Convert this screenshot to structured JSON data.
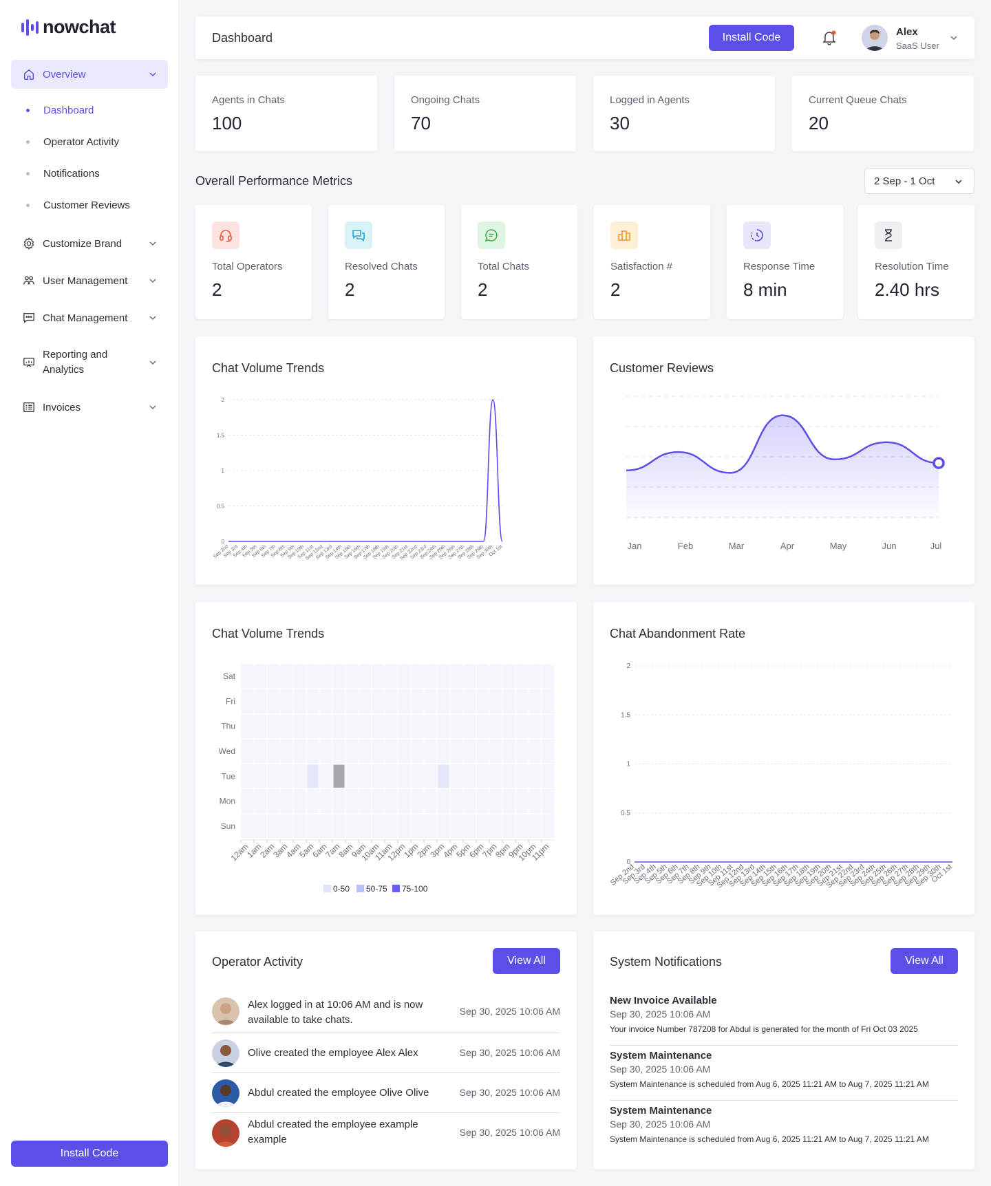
{
  "brand": {
    "name": "nowchat"
  },
  "sidebar": {
    "overview": "Overview",
    "sub_items": [
      "Dashboard",
      "Operator Activity",
      "Notifications",
      "Customer Reviews"
    ],
    "items": [
      {
        "label": "Customize Brand",
        "icon": "gear-icon"
      },
      {
        "label": "User Management",
        "icon": "users-icon"
      },
      {
        "label": "Chat Management",
        "icon": "chat-icon"
      },
      {
        "label": "Reporting and Analytics",
        "icon": "report-icon"
      },
      {
        "label": "Invoices",
        "icon": "invoice-icon"
      }
    ],
    "install_label": "Install Code"
  },
  "header": {
    "title": "Dashboard",
    "install_label": "Install Code",
    "user_name": "Alex",
    "user_role": "SaaS User"
  },
  "stats": [
    {
      "label": "Agents in Chats",
      "value": "100"
    },
    {
      "label": "Ongoing Chats",
      "value": "70"
    },
    {
      "label": "Logged in Agents",
      "value": "30"
    },
    {
      "label": "Current Queue Chats",
      "value": "20"
    }
  ],
  "performance": {
    "title": "Overall Performance Metrics",
    "date_range": "2 Sep - 1 Oct",
    "metrics": [
      {
        "label": "Total Operators",
        "value": "2",
        "icon": "headset-icon",
        "color": "#e8553e",
        "bg": "#fde3df"
      },
      {
        "label": "Resolved Chats",
        "value": "2",
        "icon": "chat-bubbles-icon",
        "color": "#2aa7c9",
        "bg": "#d9f2f8"
      },
      {
        "label": "Total Chats",
        "value": "2",
        "icon": "message-icon",
        "color": "#3fae4f",
        "bg": "#e0f4e2"
      },
      {
        "label": "Satisfaction #",
        "value": "2",
        "icon": "podium-icon",
        "color": "#e8a02e",
        "bg": "#fdefd6"
      },
      {
        "label": "Response Time",
        "value": "8 min",
        "icon": "timer-icon",
        "color": "#5b4fe8",
        "bg": "#e7e6fb"
      },
      {
        "label": "Resolution Time",
        "value": "2.40 hrs",
        "icon": "hourglass-icon",
        "color": "#3a3c46",
        "bg": "#eeeff2"
      }
    ]
  },
  "panels": {
    "volume_title": "Chat Volume Trends",
    "reviews_title": "Customer Reviews",
    "heatmap_title": "Chat Volume Trends",
    "abandon_title": "Chat Abandonment Rate",
    "heatmap_legend": [
      "0-50",
      "50-75",
      "75-100"
    ]
  },
  "chart_data": [
    {
      "type": "line",
      "title": "Chat Volume Trends",
      "x": [
        "Sep 2nd",
        "Sep 3rd",
        "Sep 4th",
        "Sep 5th",
        "Sep 6th",
        "Sep 7th",
        "Sep 8th",
        "Sep 9th",
        "Sep 10th",
        "Sep 11st",
        "Sep 12nd",
        "Sep 13rd",
        "Sep 14th",
        "Sep 15th",
        "Sep 16th",
        "Sep 17th",
        "Sep 18th",
        "Sep 19th",
        "Sep 20th",
        "Sep 21st",
        "Sep 22nd",
        "Sep 23rd",
        "Sep 24th",
        "Sep 25th",
        "Sep 26th",
        "Sep 27th",
        "Sep 28th",
        "Sep 29th",
        "Sep 30th",
        "Oct 1st"
      ],
      "values": [
        0,
        0,
        0,
        0,
        0,
        0,
        0,
        0,
        0,
        0,
        0,
        0,
        0,
        0,
        0,
        0,
        0,
        0,
        0,
        0,
        0,
        0,
        0,
        0,
        0,
        0,
        0,
        0,
        2,
        0
      ],
      "ylim": [
        0,
        2
      ],
      "yticks": [
        "0",
        "0.5",
        "1",
        "1.5",
        "2"
      ],
      "grid": true
    },
    {
      "type": "area",
      "title": "Customer Reviews",
      "x": [
        "Jan",
        "Feb",
        "Mar",
        "Apr",
        "May",
        "Jun",
        "Jul"
      ],
      "values": [
        4.0,
        5.5,
        3.8,
        8.5,
        4.9,
        6.3,
        4.6
      ],
      "ylim": [
        0,
        10
      ],
      "grid": true
    },
    {
      "type": "heatmap",
      "title": "Chat Volume Trends",
      "x": [
        "12am",
        "1am",
        "2am",
        "3am",
        "4am",
        "5am",
        "6am",
        "7am",
        "8am",
        "9am",
        "10am",
        "11am",
        "12pm",
        "1pm",
        "2pm",
        "3pm",
        "4pm",
        "5pm",
        "6pm",
        "7pm",
        "8pm",
        "9pm",
        "10pm",
        "11pm"
      ],
      "y": [
        "Sun",
        "Mon",
        "Tue",
        "Wed",
        "Thu",
        "Fri",
        "Sat"
      ],
      "cells": [
        {
          "day": "Tue",
          "hour": "5am",
          "level": "0-50"
        },
        {
          "day": "Tue",
          "hour": "7am",
          "level": "highlight"
        },
        {
          "day": "Tue",
          "hour": "3pm",
          "level": "0-50"
        }
      ],
      "legend": [
        "0-50",
        "50-75",
        "75-100"
      ],
      "legend_colors": [
        "#dfe3fb",
        "#b8bff5",
        "#6a5ef0"
      ]
    },
    {
      "type": "line",
      "title": "Chat Abandonment Rate",
      "x": [
        "Sep 2nd",
        "Sep 3rd",
        "Sep 4th",
        "Sep 5th",
        "Sep 6th",
        "Sep 7th",
        "Sep 8th",
        "Sep 9th",
        "Sep 10th",
        "Sep 11st",
        "Sep 12nd",
        "Sep 13rd",
        "Sep 14th",
        "Sep 15th",
        "Sep 16th",
        "Sep 17th",
        "Sep 18th",
        "Sep 19th",
        "Sep 20th",
        "Sep 21st",
        "Sep 22nd",
        "Sep 23rd",
        "Sep 24th",
        "Sep 25th",
        "Sep 26th",
        "Sep 27th",
        "Sep 28th",
        "Sep 29th",
        "Sep 30th",
        "Oct 1st"
      ],
      "values": [
        0,
        0,
        0,
        0,
        0,
        0,
        0,
        0,
        0,
        0,
        0,
        0,
        0,
        0,
        0,
        0,
        0,
        0,
        0,
        0,
        0,
        0,
        0,
        0,
        0,
        0,
        0,
        0,
        0,
        0
      ],
      "ylim": [
        0,
        2
      ],
      "yticks": [
        "0",
        "0.5",
        "1",
        "1.5",
        "2"
      ],
      "grid": true
    }
  ],
  "operator_activity": {
    "title": "Operator Activity",
    "view_all": "View All",
    "items": [
      {
        "text": "Alex logged in at 10:06 AM and is now available to take chats.",
        "time": "Sep 30, 2025 10:06 AM"
      },
      {
        "text": "Olive created the employee Alex Alex",
        "time": "Sep 30, 2025 10:06 AM"
      },
      {
        "text": "Abdul created the employee Olive Olive",
        "time": "Sep 30, 2025 10:06 AM"
      },
      {
        "text": "Abdul created the employee example example",
        "time": "Sep 30, 2025 10:06 AM"
      }
    ]
  },
  "system_notifications": {
    "title": "System Notifications",
    "view_all": "View All",
    "items": [
      {
        "title": "New Invoice Available",
        "date": "Sep 30, 2025 10:06 AM",
        "body": "Your invoice Number 787208 for Abdul is generated for the month of Fri Oct 03 2025"
      },
      {
        "title": "System Maintenance",
        "date": "Sep 30, 2025 10:06 AM",
        "body": "System Maintenance is scheduled from Aug 6, 2025 11:21 AM to Aug 7, 2025 11:21 AM"
      },
      {
        "title": "System Maintenance",
        "date": "Sep 30, 2025 10:06 AM",
        "body": "System Maintenance is scheduled from Aug 6, 2025 11:21 AM to Aug 7, 2025 11:21 AM"
      }
    ]
  },
  "colors": {
    "accent": "#5b4fe8",
    "active_bg": "#e9e9fb"
  }
}
